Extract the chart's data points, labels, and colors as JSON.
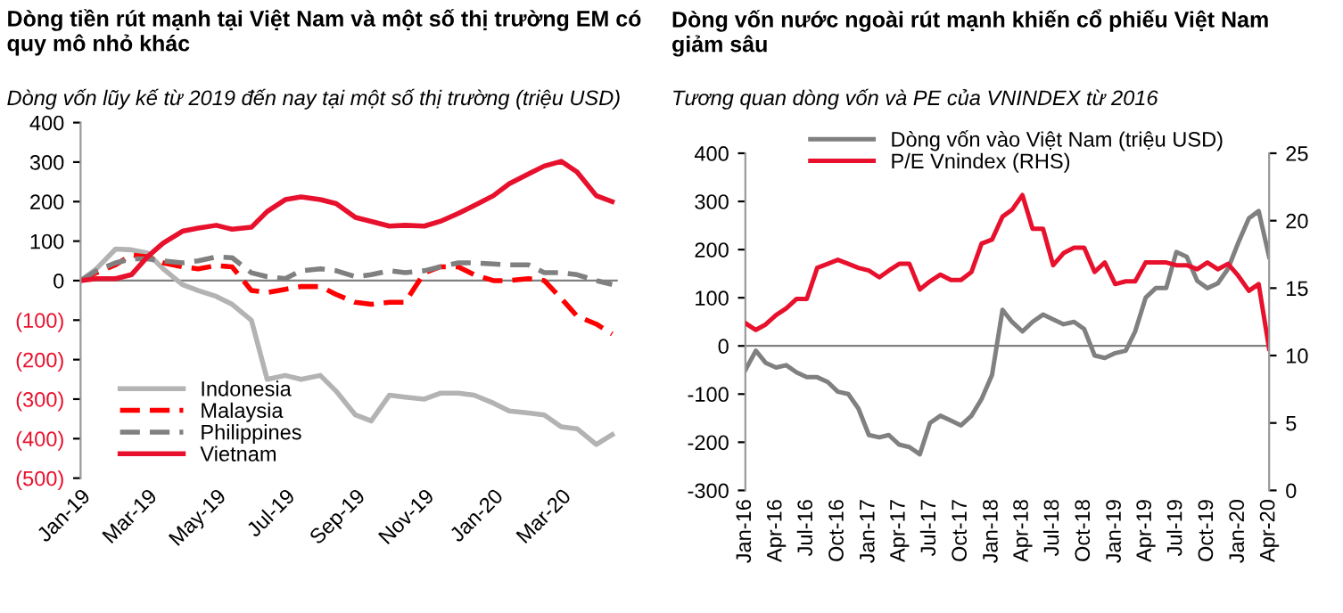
{
  "chart_data": [
    {
      "type": "line",
      "title": "Dòng tiền rút mạnh tại Việt Nam và một số thị trường EM có\nquy mô nhỏ khác",
      "subtitle": "Dòng vốn lũy kế từ 2019 đến nay tại một số thị trường (triệu USD)",
      "x": [
        "2019-01-01",
        "2019-01-15",
        "2019-02-01",
        "2019-02-15",
        "2019-03-01",
        "2019-03-15",
        "2019-04-01",
        "2019-04-15",
        "2019-05-01",
        "2019-05-15",
        "2019-06-01",
        "2019-06-15",
        "2019-07-01",
        "2019-07-15",
        "2019-08-01",
        "2019-08-15",
        "2019-09-01",
        "2019-09-15",
        "2019-10-01",
        "2019-10-15",
        "2019-11-01",
        "2019-11-15",
        "2019-12-01",
        "2019-12-15",
        "2020-01-01",
        "2020-01-15",
        "2020-02-01",
        "2020-02-15",
        "2020-03-01",
        "2020-03-15",
        "2020-04-01",
        "2020-04-15"
      ],
      "series": [
        {
          "name": "Indonesia",
          "color": "#b3b3b3",
          "line_style": "solid",
          "values": [
            0,
            30,
            80,
            78,
            70,
            30,
            -10,
            -25,
            -40,
            -60,
            -100,
            -250,
            -240,
            -250,
            -240,
            -280,
            -340,
            -355,
            -290,
            -295,
            -300,
            -285,
            -285,
            -290,
            -310,
            -330,
            -335,
            -340,
            -370,
            -375,
            -415,
            -390
          ]
        },
        {
          "name": "Malaysia",
          "color": "#ff0000",
          "line_style": "dashed",
          "values": [
            0,
            20,
            40,
            65,
            60,
            45,
            35,
            30,
            38,
            35,
            -25,
            -30,
            -22,
            -15,
            -15,
            -35,
            -55,
            -60,
            -55,
            -55,
            20,
            35,
            35,
            15,
            0,
            0,
            5,
            0,
            -45,
            -90,
            -110,
            -135
          ]
        },
        {
          "name": "Philippines",
          "color": "#808080",
          "line_style": "dashed",
          "values": [
            0,
            25,
            45,
            55,
            55,
            50,
            45,
            50,
            60,
            58,
            20,
            10,
            5,
            25,
            30,
            25,
            10,
            15,
            25,
            20,
            25,
            35,
            45,
            45,
            42,
            40,
            40,
            20,
            20,
            15,
            0,
            -10
          ]
        },
        {
          "name": "Vietnam",
          "color": "#e8112d",
          "line_style": "solid",
          "values": [
            0,
            5,
            5,
            15,
            60,
            95,
            125,
            133,
            140,
            130,
            135,
            175,
            205,
            212,
            205,
            195,
            160,
            150,
            138,
            140,
            138,
            150,
            170,
            190,
            215,
            245,
            270,
            290,
            302,
            275,
            215,
            200
          ]
        }
      ],
      "xlim": [
        "2019-01-01",
        "2020-04-20"
      ],
      "xticks": [
        {
          "value": "2019-01-01",
          "label": "Jan-19"
        },
        {
          "value": "2019-03-01",
          "label": "Mar-19"
        },
        {
          "value": "2019-05-01",
          "label": "May-19"
        },
        {
          "value": "2019-07-01",
          "label": "Jul-19"
        },
        {
          "value": "2019-09-01",
          "label": "Sep-19"
        },
        {
          "value": "2019-11-01",
          "label": "Nov-19"
        },
        {
          "value": "2020-01-01",
          "label": "Jan-20"
        },
        {
          "value": "2020-03-01",
          "label": "Mar-20"
        }
      ],
      "ylim": [
        -500,
        400
      ],
      "yticks": [
        {
          "value": -500,
          "label": "(500)"
        },
        {
          "value": -400,
          "label": "(400)"
        },
        {
          "value": -300,
          "label": "(300)"
        },
        {
          "value": -200,
          "label": "(200)"
        },
        {
          "value": -100,
          "label": "(100)"
        },
        0,
        100,
        200,
        300,
        400
      ],
      "ref_lines": [
        {
          "axis": "y",
          "value": 0,
          "color": "#808080"
        }
      ],
      "grid": false,
      "legend": "bottom left",
      "marker": "none"
    },
    {
      "type": "line",
      "title": "Dòng vốn nước ngoài rút mạnh khiến cổ phiếu Việt Nam\ngiảm sâu",
      "subtitle": "Tương quan dòng vốn và PE của VNINDEX từ 2016",
      "x": [
        "2016-01-01",
        "2016-02-01",
        "2016-03-01",
        "2016-04-01",
        "2016-05-01",
        "2016-06-01",
        "2016-07-01",
        "2016-08-01",
        "2016-09-01",
        "2016-10-01",
        "2016-11-01",
        "2016-12-01",
        "2017-01-01",
        "2017-02-01",
        "2017-03-01",
        "2017-04-01",
        "2017-05-01",
        "2017-06-01",
        "2017-07-01",
        "2017-08-01",
        "2017-09-01",
        "2017-10-01",
        "2017-11-01",
        "2017-12-01",
        "2018-01-01",
        "2018-02-01",
        "2018-03-01",
        "2018-04-01",
        "2018-05-01",
        "2018-06-01",
        "2018-07-01",
        "2018-08-01",
        "2018-09-01",
        "2018-10-01",
        "2018-11-01",
        "2018-12-01",
        "2019-01-01",
        "2019-02-01",
        "2019-03-01",
        "2019-04-01",
        "2019-05-01",
        "2019-06-01",
        "2019-07-01",
        "2019-08-01",
        "2019-09-01",
        "2019-10-01",
        "2019-11-01",
        "2019-12-01",
        "2020-01-01",
        "2020-02-01",
        "2020-03-01",
        "2020-04-01"
      ],
      "series": [
        {
          "name": "Dòng vốn vào Việt Nam (triệu USD)",
          "color": "#808080",
          "values": [
            -50,
            -10,
            -35,
            -45,
            -40,
            -55,
            -65,
            -65,
            -75,
            -95,
            -100,
            -130,
            -185,
            -190,
            -185,
            -205,
            -210,
            -225,
            -160,
            -145,
            -155,
            -165,
            -145,
            -110,
            -60,
            75,
            50,
            30,
            50,
            65,
            55,
            45,
            50,
            35,
            -20,
            -25,
            -15,
            -10,
            30,
            100,
            120,
            120,
            195,
            185,
            135,
            120,
            130,
            160,
            215,
            265,
            280,
            185
          ]
        },
        {
          "name": "P/E Vnindex (RHS)",
          "color": "#e8112d",
          "axis": "y2",
          "values": [
            12.4,
            11.9,
            12.3,
            13.0,
            13.5,
            14.2,
            14.2,
            16.5,
            16.8,
            17.1,
            16.8,
            16.5,
            16.3,
            15.8,
            16.3,
            16.8,
            16.8,
            14.9,
            15.5,
            16.0,
            15.6,
            15.6,
            16.2,
            18.3,
            18.6,
            20.3,
            20.8,
            21.9,
            19.4,
            19.4,
            16.7,
            17.6,
            18.0,
            18.0,
            16.2,
            16.9,
            15.3,
            15.5,
            15.5,
            16.9,
            16.9,
            16.9,
            16.7,
            16.7,
            16.4,
            16.9,
            16.4,
            16.8,
            15.9,
            14.8,
            15.3,
            10.5
          ]
        }
      ],
      "xlim": [
        "2016-01-01",
        "2020-04-01"
      ],
      "xticks": [
        {
          "value": "2016-01-01",
          "label": "Jan-16"
        },
        {
          "value": "2016-04-01",
          "label": "Apr-16"
        },
        {
          "value": "2016-07-01",
          "label": "Jul-16"
        },
        {
          "value": "2016-10-01",
          "label": "Oct-16"
        },
        {
          "value": "2017-01-01",
          "label": "Jan-17"
        },
        {
          "value": "2017-04-01",
          "label": "Apr-17"
        },
        {
          "value": "2017-07-01",
          "label": "Jul-17"
        },
        {
          "value": "2017-10-01",
          "label": "Oct-17"
        },
        {
          "value": "2018-01-01",
          "label": "Jan-18"
        },
        {
          "value": "2018-04-01",
          "label": "Apr-18"
        },
        {
          "value": "2018-07-01",
          "label": "Jul-18"
        },
        {
          "value": "2018-10-01",
          "label": "Oct-18"
        },
        {
          "value": "2019-01-01",
          "label": "Jan-19"
        },
        {
          "value": "2019-04-01",
          "label": "Apr-19"
        },
        {
          "value": "2019-07-01",
          "label": "Jul-19"
        },
        {
          "value": "2019-10-01",
          "label": "Oct-19"
        },
        {
          "value": "2020-01-01",
          "label": "Jan-20"
        },
        {
          "value": "2020-04-01",
          "label": "Apr-20"
        }
      ],
      "ylim": [
        -300,
        400
      ],
      "yticks": [
        -300,
        -200,
        -100,
        0,
        100,
        200,
        300,
        400
      ],
      "y2lim": [
        0,
        25
      ],
      "y2ticks": [
        0,
        5,
        10,
        15,
        20,
        25
      ],
      "ref_lines": [
        {
          "axis": "y",
          "value": 0,
          "color": "#808080"
        }
      ],
      "grid": false,
      "legend": "top",
      "marker": "none"
    }
  ]
}
